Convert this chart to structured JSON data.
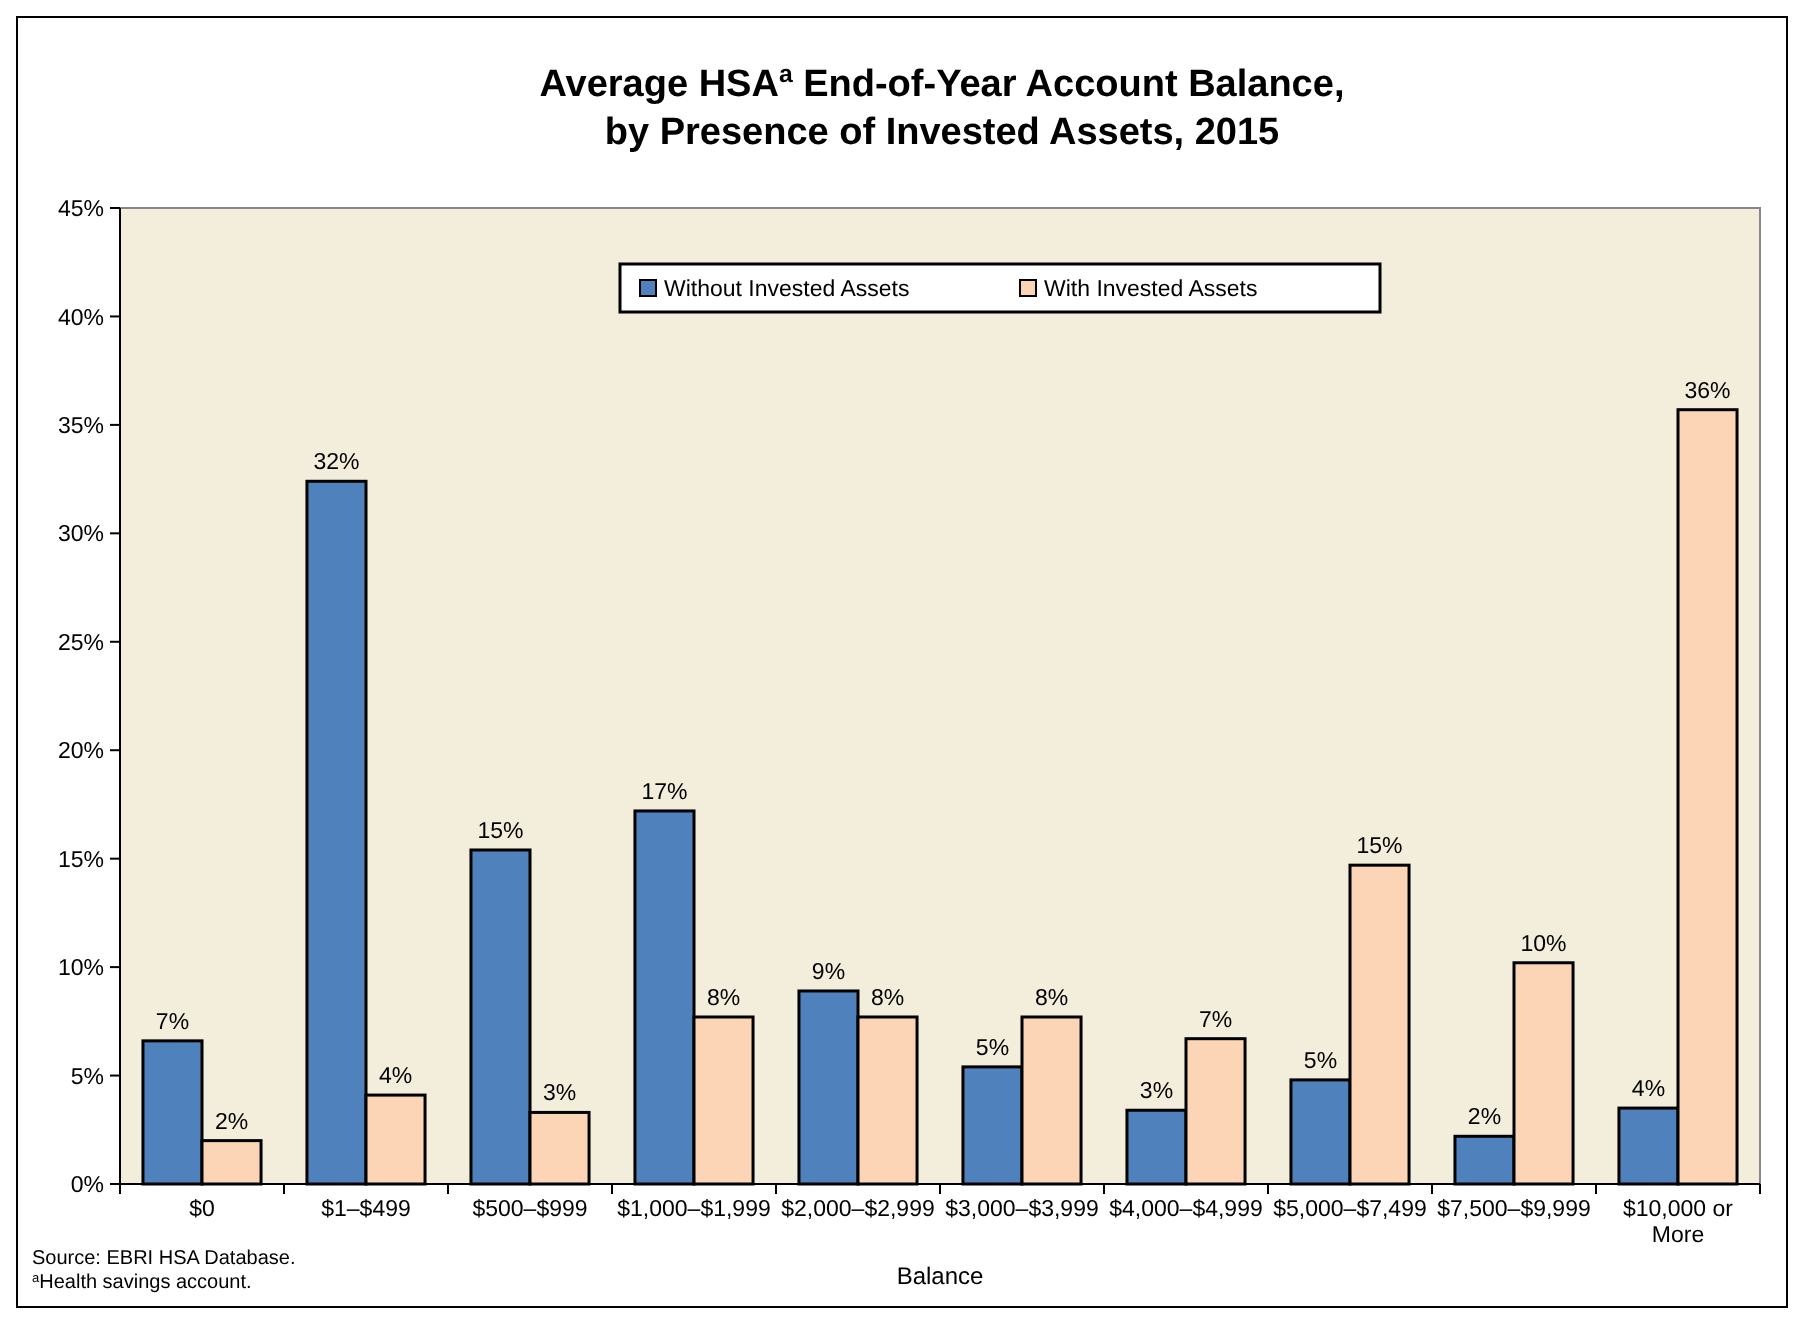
{
  "chart_data": {
    "type": "bar",
    "title": "Average HSA$^{a}$ End-of-Year Account Balance,\nby Presence of Invested Assets, 2015",
    "xlabel": "Balance",
    "categories": [
      "$0",
      "$1–$499",
      "$500–$999",
      "$1,000–$1,999",
      "$2,000–$2,999",
      "$3,000–$3,999",
      "$4,000–$4,999",
      "$5,000–$7,499",
      "$7,500–$9,999",
      "$10,000 or More"
    ],
    "series": [
      {
        "name": "Without Invested Assets",
        "color": "#4f81bd",
        "values": [
          6.6,
          32.4,
          15.4,
          17.2,
          8.9,
          5.4,
          3.4,
          4.8,
          2.2,
          3.5
        ],
        "value_labels": [
          "7%",
          "32%",
          "15%",
          "17%",
          "9%",
          "5%",
          "3%",
          "5%",
          "2%",
          "4%"
        ]
      },
      {
        "name": "With Invested Assets",
        "color": "#fbd5b5",
        "values": [
          2.0,
          4.1,
          3.3,
          7.7,
          7.7,
          7.7,
          6.7,
          14.7,
          10.2,
          35.7
        ],
        "value_labels": [
          "2%",
          "4%",
          "3%",
          "8%",
          "8%",
          "8%",
          "7%",
          "15%",
          "10%",
          "36%"
        ]
      }
    ],
    "ylim": [
      0,
      45
    ],
    "yticks": [
      {
        "value": 0,
        "label": "0%"
      },
      {
        "value": 5,
        "label": "5%"
      },
      {
        "value": 10,
        "label": "10%"
      },
      {
        "value": 15,
        "label": "15%"
      },
      {
        "value": 20,
        "label": "20%"
      },
      {
        "value": 25,
        "label": "25%"
      },
      {
        "value": 30,
        "label": "30%"
      },
      {
        "value": 35,
        "label": "35%"
      },
      {
        "value": 40,
        "label": "40%"
      },
      {
        "value": 45,
        "label": "45%"
      }
    ],
    "legend": "top",
    "grid": false,
    "annotations": [
      "Source: EBRI HSA Database.",
      "$^{a}$Health savings account."
    ]
  }
}
